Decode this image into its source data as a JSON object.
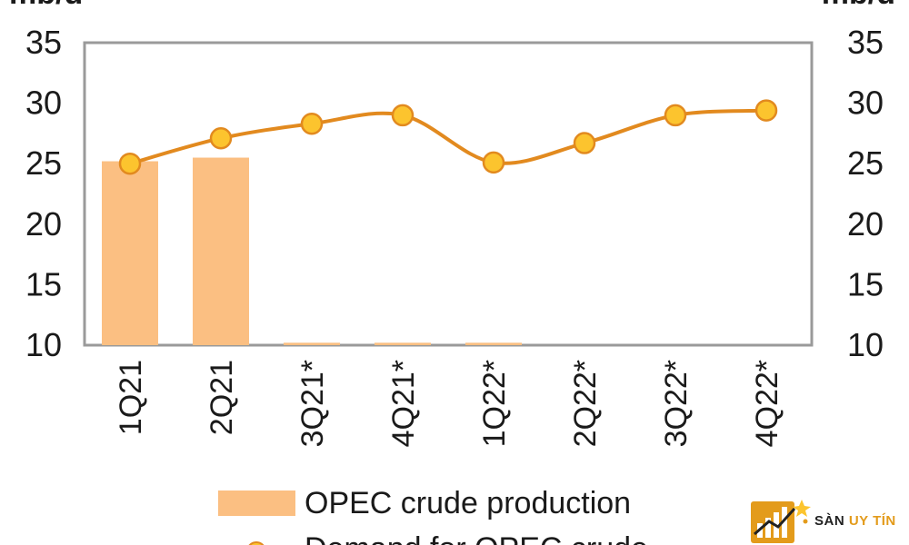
{
  "chart_data": {
    "type": "bar+line",
    "title": "",
    "unit_left": "mb/d",
    "unit_right": "mb/d",
    "categories": [
      "1Q21",
      "2Q21",
      "3Q21*",
      "4Q21*",
      "1Q22*",
      "2Q22*",
      "3Q22*",
      "4Q22*"
    ],
    "ylim": [
      10,
      35
    ],
    "yticks": [
      "10",
      "15",
      "20",
      "25",
      "30",
      "35"
    ],
    "grid": false,
    "legend_position": "bottom",
    "series": [
      {
        "name": "OPEC crude production",
        "type": "bar",
        "color": "#fbbf82",
        "values": [
          25.2,
          25.5,
          10.2,
          10.2,
          10.2,
          null,
          null,
          null
        ]
      },
      {
        "name": "Demand for OPEC crude",
        "type": "line",
        "color": "#e28a1f",
        "marker_color": "#fcc42e",
        "values": [
          25.0,
          27.1,
          28.3,
          29.0,
          25.1,
          26.7,
          29.0,
          29.4
        ]
      }
    ]
  },
  "watermark": {
    "brand_part1": "SÀN",
    "brand_part2": "UY TÍN",
    "icon": "bar-chart-logo-icon",
    "colors": {
      "gold": "#e39b1b",
      "dark": "#222222"
    }
  }
}
